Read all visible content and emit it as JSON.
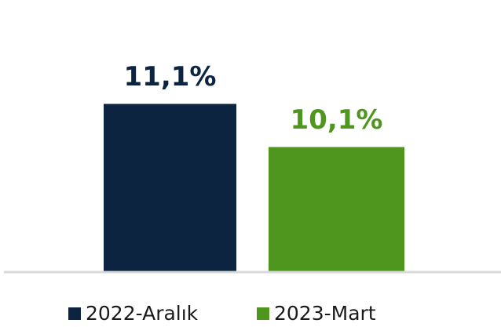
{
  "chart_data": {
    "type": "bar",
    "series": [
      {
        "name": "2022-Aralık",
        "color": "#0c2440",
        "values": [
          11.1
        ],
        "value_labels": [
          "11,1%"
        ]
      },
      {
        "name": "2023-Mart",
        "color": "#4f961f",
        "values": [
          10.1
        ],
        "value_labels": [
          "10,1%"
        ]
      }
    ],
    "ylim": [
      7.2,
      12
    ]
  }
}
